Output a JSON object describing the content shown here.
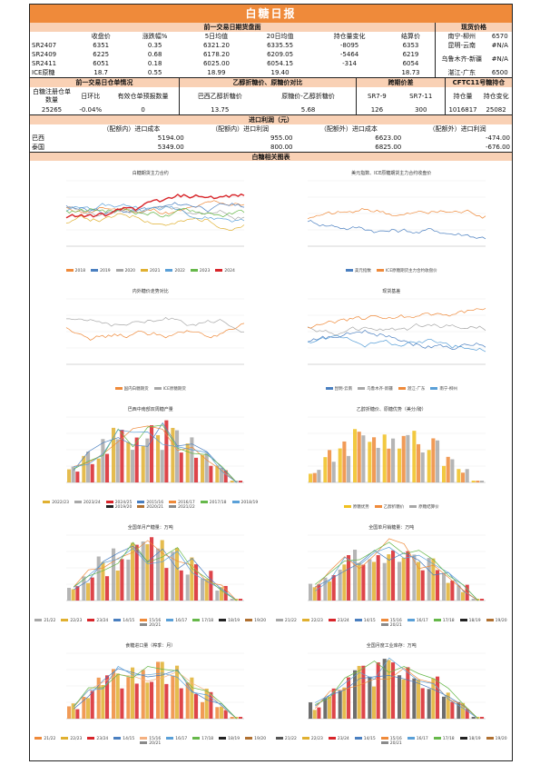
{
  "title": "白糖日报",
  "futures": {
    "section_label": "前一交易日期货盘面",
    "headers": [
      "收盘价",
      "涨跌幅%",
      "5日均值",
      "20日均值",
      "持仓量变化",
      "结算价"
    ],
    "rows": [
      {
        "name": "SR2407",
        "cells": [
          "6351",
          "0.35",
          "6321.20",
          "6335.55",
          "-8095",
          "6353"
        ]
      },
      {
        "name": "SR2409",
        "cells": [
          "6225",
          "0.68",
          "6178.20",
          "6209.05",
          "-5464",
          "6219"
        ]
      },
      {
        "name": "SR2411",
        "cells": [
          "6051",
          "0.18",
          "6025.00",
          "6054.15",
          "-314",
          "6054"
        ]
      },
      {
        "name": "ICE原糖",
        "cells": [
          "18.7",
          "0.55",
          "18.99",
          "19.40",
          "",
          "18.73"
        ]
      }
    ]
  },
  "spot": {
    "section_label": "现货价格",
    "rows": [
      {
        "name": "南宁-柳州",
        "value": "6570"
      },
      {
        "name": "昆明-云南",
        "value": "#N/A"
      },
      {
        "name": "乌鲁木齐-新疆",
        "value": "#N/A"
      },
      {
        "name": "湛江-广东",
        "value": "6500"
      }
    ]
  },
  "warehouse": {
    "section_label": "前一交易日仓单情况",
    "headers": [
      "白糖注册仓单数量",
      "日环比",
      "有效仓单预报数量"
    ],
    "values": [
      "25265",
      "-0.04%",
      "0"
    ]
  },
  "ethanol": {
    "section_label": "乙醇折糖价、原糖价对比",
    "headers": [
      "巴西乙醇折糖价",
      "原糖价-乙醇折糖价"
    ],
    "values": [
      "13.75",
      "5.68"
    ]
  },
  "spread": {
    "section_label": "跨期价差",
    "headers": [
      "SR7-9",
      "SR7-11"
    ],
    "values": [
      "126",
      "300"
    ]
  },
  "cftc": {
    "section_label": "CFTC11号糖持仓",
    "headers": [
      "持仓量",
      "持仓变化"
    ],
    "values": [
      "1016817",
      "25082"
    ]
  },
  "import": {
    "section_label": "进口利润（元）",
    "headers": [
      "（配额内）进口成本",
      "（配额内）进口利润",
      "（配额外）进口成本",
      "（配额外）进口利润"
    ],
    "rows": [
      {
        "name": "巴西",
        "cells": [
          "5194.00",
          "955.00",
          "6623.00",
          "-474.00"
        ]
      },
      {
        "name": "泰国",
        "cells": [
          "5349.00",
          "800.00",
          "6825.00",
          "-676.00"
        ]
      }
    ]
  },
  "charts_section_label": "白糖相关图表",
  "charts": [
    {
      "title": "白糖期货主力合约",
      "legend": [
        "2018",
        "2019",
        "2020",
        "2021",
        "2022",
        "2023",
        "2024"
      ],
      "colors": [
        "#ef8a3a",
        "#4a7fc0",
        "#a8a8a8",
        "#e0b030",
        "#5aa0d8",
        "#66b84a",
        "#d8252a"
      ]
    },
    {
      "title": "美元指数、ICE原糖期货主力合约收盘价",
      "legend": [
        "美元指数",
        "ICE原糖期货主力合约收盘价"
      ],
      "colors": [
        "#4a7fc0",
        "#ef8a3a"
      ]
    },
    {
      "title": "内外糖价走势对比",
      "legend": [
        "国内白糖期货",
        "ICE原糖期货"
      ],
      "colors": [
        "#ef8a3a",
        "#a8a8a8"
      ]
    },
    {
      "title": "现货基差",
      "legend": [
        "昆明-云南",
        "乌鲁木齐-新疆",
        "湛江-广东",
        "南宁-柳州"
      ],
      "colors": [
        "#4a7fc0",
        "#a8a8a8",
        "#ef8a3a",
        "#5aa0d8"
      ]
    },
    {
      "title": "巴西中南部双周糖产量",
      "legend": [
        "2022/23",
        "2023/24",
        "2024/25",
        "2015/16",
        "2016/17",
        "2017/18",
        "2018/19",
        "2019/20",
        "2020/21",
        "2021/22"
      ],
      "colors": [
        "#e0b030",
        "#a8a8a8",
        "#d8252a",
        "#4a7fc0",
        "#ef8a3a",
        "#66b84a",
        "#5aa0d8",
        "#222222",
        "#b07030",
        "#8a8a8a"
      ]
    },
    {
      "title": "乙醇折糖价、原糖优势（美分/磅）",
      "legend": [
        "原糖优势",
        "乙醇折糖价",
        "原糖结算价"
      ],
      "colors": [
        "#f0c020",
        "#ef8a3a",
        "#a8a8a8"
      ]
    },
    {
      "title": "全国单月产糖量：万吨",
      "legend": [
        "21/22",
        "22/23",
        "23/24",
        "14/15",
        "15/16",
        "16/17",
        "17/18",
        "18/19",
        "19/20",
        "20/21"
      ],
      "colors": [
        "#a8a8a8",
        "#e0b030",
        "#d8252a",
        "#4a7fc0",
        "#ef8a3a",
        "#5aa0d8",
        "#66b84a",
        "#222222",
        "#b07030",
        "#8a8a8a"
      ]
    },
    {
      "title": "全国单月销糖量：万吨",
      "legend": [
        "21/22",
        "22/23",
        "23/24",
        "14/15",
        "15/16",
        "16/17",
        "17/18",
        "18/19",
        "19/20",
        "20/21"
      ],
      "colors": [
        "#a8a8a8",
        "#e0b030",
        "#d8252a",
        "#4a7fc0",
        "#ef8a3a",
        "#5aa0d8",
        "#66b84a",
        "#222222",
        "#b07030",
        "#8a8a8a"
      ]
    },
    {
      "title": "食糖进口量（榨季：月）",
      "legend": [
        "21/22",
        "22/23",
        "23/24",
        "14/15",
        "15/16",
        "16/17",
        "17/18",
        "18/19",
        "19/20",
        "20/21"
      ],
      "colors": [
        "#ef8a3a",
        "#e0b030",
        "#d8252a",
        "#4a7fc0",
        "#f4b080",
        "#5aa0d8",
        "#66b84a",
        "#222222",
        "#b07030",
        "#8a8a8a"
      ]
    },
    {
      "title": "全国月度工业库存：万吨",
      "legend": [
        "21/22",
        "22/23",
        "23/24",
        "14/15",
        "15/16",
        "16/17",
        "17/18",
        "18/19",
        "19/20",
        "20/21"
      ],
      "colors": [
        "#555555",
        "#e0b030",
        "#d8252a",
        "#4a7fc0",
        "#ef8a3a",
        "#5aa0d8",
        "#66b84a",
        "#222222",
        "#b07030",
        "#8a8a8a"
      ]
    }
  ]
}
